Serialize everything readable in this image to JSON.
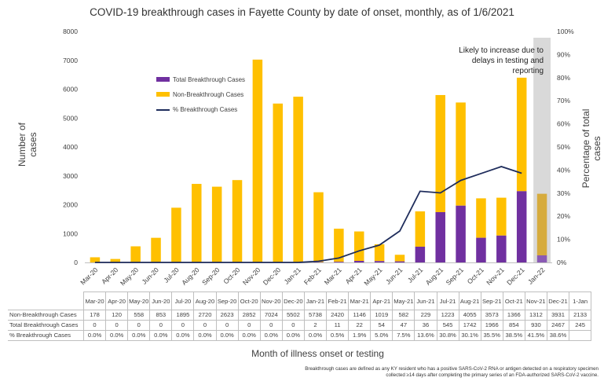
{
  "chart_data": {
    "type": "bar",
    "title": "COVID-19 breakthrough cases in Fayette County by date of onset, monthly, as of 1/6/2021",
    "xlabel": "Month of illness onset or testing",
    "ylabel": "Number of cases",
    "y2label": "Percentage of total cases",
    "ylim": [
      0,
      8000
    ],
    "y_ticks": [
      "0",
      "1000",
      "2000",
      "3000",
      "4000",
      "5000",
      "6000",
      "7000",
      "8000"
    ],
    "y2lim": [
      0,
      100
    ],
    "y2_ticks": [
      "0%",
      "10%",
      "20%",
      "30%",
      "40%",
      "50%",
      "60%",
      "70%",
      "80%",
      "90%",
      "100%"
    ],
    "stacked": true,
    "categories": [
      "Mar-20",
      "Apr-20",
      "May-20",
      "Jun-20",
      "Jul-20",
      "Aug-20",
      "Sep-20",
      "Oct-20",
      "Nov-20",
      "Dec-20",
      "Jan-21",
      "Feb-21",
      "Mar-21",
      "Apr-21",
      "May-21",
      "Jun-21",
      "Jul-21",
      "Aug-21",
      "Sep-21",
      "Oct-21",
      "Nov-21",
      "Dec-21",
      "Jan-22"
    ],
    "series": [
      {
        "name": "Total Breakthrough Cases",
        "type": "bar",
        "axis": "left",
        "color": "#7030a0",
        "values": [
          0,
          0,
          0,
          0,
          0,
          0,
          0,
          0,
          0,
          0,
          2,
          11,
          22,
          54,
          47,
          36,
          545,
          1742,
          1966,
          854,
          930,
          2467,
          245
        ]
      },
      {
        "name": "Non-Breakthrough Cases",
        "type": "bar",
        "axis": "left",
        "color": "#ffc000",
        "values": [
          178,
          120,
          558,
          853,
          1895,
          2720,
          2623,
          2852,
          7024,
          5502,
          5738,
          2420,
          1146,
          1019,
          582,
          229,
          1223,
          4055,
          3573,
          1366,
          1312,
          3931,
          2133
        ]
      },
      {
        "name": "% Breakthrough Cases",
        "type": "line",
        "axis": "right",
        "color": "#1f2d5c",
        "values": [
          0,
          0,
          0,
          0,
          0,
          0,
          0,
          0,
          0,
          0,
          0,
          0.5,
          1.9,
          5.0,
          7.5,
          13.6,
          30.8,
          30.1,
          35.5,
          38.5,
          41.5,
          38.6,
          null
        ]
      }
    ],
    "shaded_category": "Jan-22",
    "shade_color": "#d9d9d9",
    "annotation": "Likely to increase due to delays in testing and reporting",
    "legend_position": "upper-left-inside"
  },
  "table": {
    "header_cells": [
      "Mar-20",
      "Apr-20",
      "May-20",
      "Jun-20",
      "Jul-20",
      "Aug-20",
      "Sep-20",
      "Oct-20",
      "Nov-20",
      "Dec-20",
      "Jan-21",
      "Feb-21",
      "Mar-21",
      "Apr-21",
      "May-21",
      "Jun-21",
      "Jul-21",
      "Aug-21",
      "Sep-21",
      "Oct-21",
      "Nov-21",
      "Dec-21",
      "1-Jan"
    ],
    "rows": [
      {
        "label": "Non-Breakthrough Cases",
        "cells": [
          "178",
          "120",
          "558",
          "853",
          "1895",
          "2720",
          "2623",
          "2852",
          "7024",
          "5502",
          "5738",
          "2420",
          "1146",
          "1019",
          "582",
          "229",
          "1223",
          "4055",
          "3573",
          "1366",
          "1312",
          "3931",
          "2133"
        ]
      },
      {
        "label": "Total Breakthrough Cases",
        "cells": [
          "0",
          "0",
          "0",
          "0",
          "0",
          "0",
          "0",
          "0",
          "0",
          "0",
          "2",
          "11",
          "22",
          "54",
          "47",
          "36",
          "545",
          "1742",
          "1966",
          "854",
          "930",
          "2467",
          "245"
        ]
      },
      {
        "label": "% Breakthrough Cases",
        "cells": [
          "0.0%",
          "0.0%",
          "0.0%",
          "0.0%",
          "0.0%",
          "0.0%",
          "0.0%",
          "0.0%",
          "0.0%",
          "0.0%",
          "0.0%",
          "0.5%",
          "1.9%",
          "5.0%",
          "7.5%",
          "13.6%",
          "30.8%",
          "30.1%",
          "35.5%",
          "38.5%",
          "41.5%",
          "38.6%",
          ""
        ]
      }
    ]
  },
  "footnote": {
    "line1": "Breakthrough cases are defined as any KY resident who has a positive SARS-CoV-2 RNA or antigen detected on a respiratory specimen",
    "line2": "collected ≥14 days after completing the primary series of an FDA-authorized SARS-CoV-2 vaccine."
  }
}
